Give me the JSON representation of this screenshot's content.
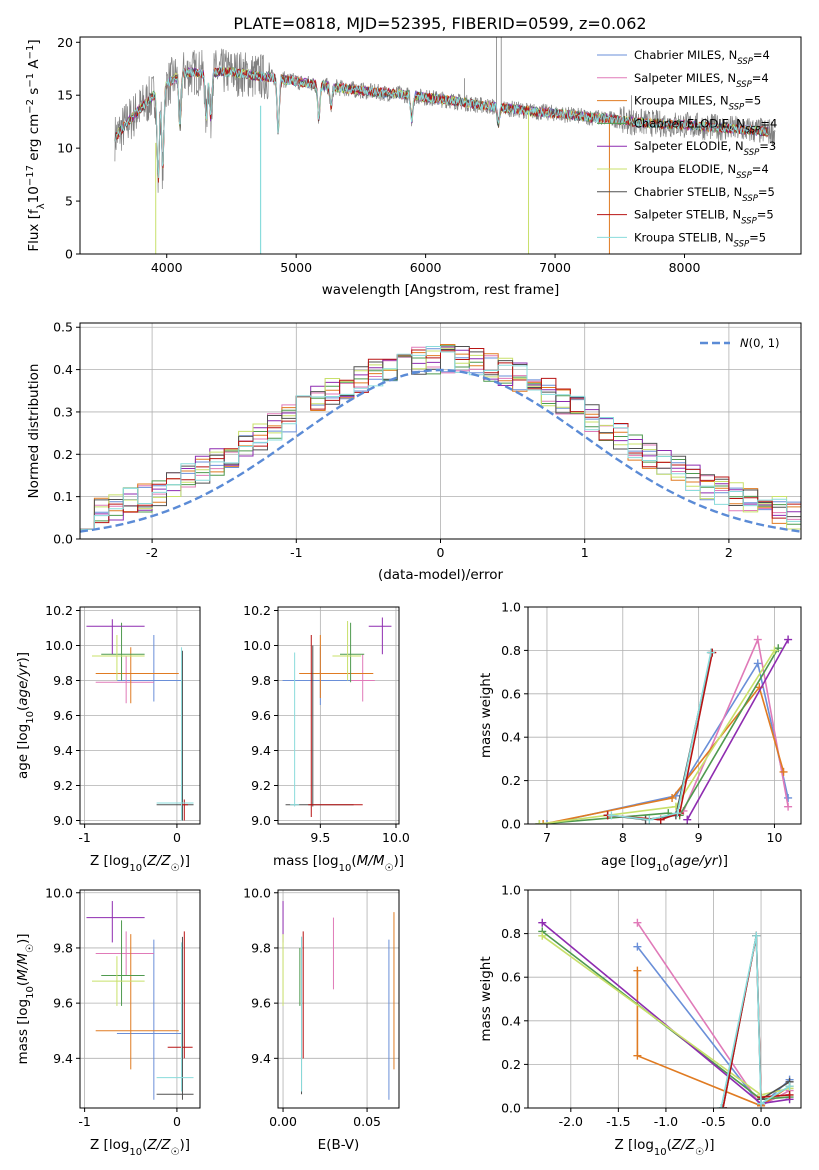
{
  "figure_title": "PLATE=0818, MJD=52395, FIBERID=0599, z=0.062",
  "series": [
    {
      "key": "cm",
      "name": "Chabrier MILES",
      "nssp": "4",
      "color": "#6a8fd8"
    },
    {
      "key": "sm",
      "name": "Salpeter MILES",
      "nssp": "4",
      "color": "#e07ab8"
    },
    {
      "key": "km",
      "name": "Kroupa MILES",
      "nssp": "5",
      "color": "#e07b22"
    },
    {
      "key": "ce",
      "name": "Chabrier ELODIE",
      "nssp": "4",
      "color": "#4f9a4f"
    },
    {
      "key": "se",
      "name": "Salpeter ELODIE",
      "nssp": "3",
      "color": "#8e2cb0"
    },
    {
      "key": "ke",
      "name": "Kroupa ELODIE",
      "nssp": "4",
      "color": "#c8e06a"
    },
    {
      "key": "cs",
      "name": "Chabrier STELIB",
      "nssp": "5",
      "color": "#505050"
    },
    {
      "key": "ss",
      "name": "Salpeter STELIB",
      "nssp": "5",
      "color": "#b81414"
    },
    {
      "key": "ks",
      "name": "Kroupa STELIB",
      "nssp": "5",
      "color": "#8adcdc"
    }
  ],
  "nssp_prefix": "N",
  "nssp_sub": "SSP",
  "chart_data": [
    {
      "id": "spectrum",
      "type": "line",
      "xlabel": "wavelength [Angstrom, rest frame]",
      "ylabel": "Flux [fλ10⁻¹⁷ erg cm⁻² s⁻¹ A⁻¹]",
      "xlim": [
        3330,
        8900
      ],
      "ylim": [
        0,
        20.5
      ],
      "xticks": [
        4000,
        5000,
        6000,
        7000,
        8000
      ],
      "yticks": [
        0,
        5,
        10,
        15,
        20
      ],
      "grid": false,
      "legend": "upper right",
      "data_color": "#808080",
      "continuum": {
        "x": [
          3600,
          3700,
          3800,
          3900,
          4000,
          4100,
          4200,
          4300,
          4400,
          4500,
          4600,
          4700,
          4800,
          4900,
          5000,
          5200,
          5400,
          5600,
          5800,
          6000,
          6200,
          6400,
          6600,
          6800,
          7000,
          7200,
          7400,
          7600,
          7800,
          8000,
          8200,
          8400,
          8600,
          8700
        ],
        "y": [
          11.0,
          12.5,
          13.8,
          15.0,
          16.0,
          17.0,
          17.2,
          17.0,
          17.2,
          17.2,
          17.0,
          16.8,
          16.7,
          16.5,
          16.3,
          15.9,
          15.6,
          15.3,
          15.1,
          14.8,
          14.5,
          14.1,
          13.8,
          13.5,
          13.3,
          13.0,
          12.8,
          12.5,
          12.3,
          12.2,
          12.0,
          11.8,
          11.6,
          11.5
        ]
      }
    },
    {
      "id": "residuals",
      "type": "line",
      "xlabel": "(data-model)/error",
      "ylabel": "Normed distribution",
      "xlim": [
        -2.5,
        2.5
      ],
      "ylim": [
        0,
        0.51
      ],
      "xticks": [
        -2,
        -1,
        0,
        1,
        2
      ],
      "yticks": [
        0.0,
        0.1,
        0.2,
        0.3,
        0.4,
        0.5
      ],
      "grid": true,
      "legend": "upper right",
      "gaussian_label": "N(0,1)",
      "gaussian_color": "#5b8bd6",
      "bin_width": 0.1
    },
    {
      "id": "age-vs-z",
      "type": "scatter",
      "xlabel": "Z [log10(Z/Z☉)]",
      "ylabel": "age [log10(age/yr)]",
      "xlim": [
        -1.05,
        0.25
      ],
      "ylim": [
        8.98,
        10.22
      ],
      "xticks": [
        -1,
        0
      ],
      "yticks": [
        9.0,
        9.2,
        9.4,
        9.6,
        9.8,
        10.0,
        10.2
      ],
      "grid": true,
      "points": [
        {
          "s": "cm",
          "x": -0.25,
          "y": 9.8,
          "xe": [
            -0.65,
            0.05
          ],
          "ye": [
            9.68,
            10.06
          ]
        },
        {
          "s": "sm",
          "x": -0.55,
          "y": 9.79,
          "xe": [
            -0.88,
            -0.25
          ],
          "ye": [
            9.67,
            9.94
          ]
        },
        {
          "s": "km",
          "x": -0.5,
          "y": 9.84,
          "xe": [
            -0.88,
            0.02
          ],
          "ye": [
            9.67,
            9.99
          ]
        },
        {
          "s": "ce",
          "x": -0.6,
          "y": 9.95,
          "xe": [
            -0.82,
            -0.35
          ],
          "ye": [
            9.8,
            10.13
          ]
        },
        {
          "s": "se",
          "x": -0.7,
          "y": 10.11,
          "xe": [
            -0.98,
            -0.35
          ],
          "ye": [
            9.95,
            10.15
          ]
        },
        {
          "s": "ke",
          "x": -0.65,
          "y": 9.94,
          "xe": [
            -0.92,
            -0.35
          ],
          "ye": [
            9.8,
            10.06
          ]
        },
        {
          "s": "cs",
          "x": 0.06,
          "y": 9.09,
          "xe": [
            -0.22,
            0.18
          ],
          "ye": [
            9.0,
            9.97
          ]
        },
        {
          "s": "ss",
          "x": 0.08,
          "y": 9.09,
          "xe": [
            0.04,
            0.12
          ],
          "ye": [
            9.0,
            9.12
          ]
        },
        {
          "s": "ks",
          "x": 0.05,
          "y": 9.1,
          "xe": [
            -0.22,
            0.18
          ],
          "ye": [
            9.0,
            9.99
          ]
        }
      ]
    },
    {
      "id": "age-vs-mass",
      "type": "scatter",
      "xlabel": "mass [log10(M/M☉)]",
      "ylabel": "",
      "xlim": [
        9.22,
        10.02
      ],
      "ylim": [
        8.98,
        10.22
      ],
      "xticks": [
        9.5,
        10.0
      ],
      "yticks": [
        9.0,
        9.2,
        9.4,
        9.6,
        9.8,
        10.0,
        10.2
      ],
      "grid": true,
      "points": [
        {
          "s": "cm",
          "x": 9.5,
          "y": 9.8,
          "xe": [
            9.25,
            9.8
          ],
          "ye": [
            9.66,
            9.99
          ]
        },
        {
          "s": "sm",
          "x": 9.78,
          "y": 9.8,
          "xe": [
            9.7,
            9.86
          ],
          "ye": [
            9.68,
            9.95
          ]
        },
        {
          "s": "km",
          "x": 9.5,
          "y": 9.84,
          "xe": [
            9.36,
            9.85
          ],
          "ye": [
            9.7,
            10.06
          ]
        },
        {
          "s": "ce",
          "x": 9.7,
          "y": 9.95,
          "xe": [
            9.63,
            9.79
          ],
          "ye": [
            9.79,
            10.13
          ]
        },
        {
          "s": "se",
          "x": 9.91,
          "y": 10.11,
          "xe": [
            9.82,
            9.97
          ],
          "ye": [
            9.95,
            10.16
          ]
        },
        {
          "s": "ke",
          "x": 9.68,
          "y": 9.94,
          "xe": [
            9.58,
            9.77
          ],
          "ye": [
            9.8,
            10.14
          ]
        },
        {
          "s": "cs",
          "x": 9.45,
          "y": 9.09,
          "xe": [
            9.27,
            9.72
          ],
          "ye": [
            9.08,
            10.0
          ]
        },
        {
          "s": "ss",
          "x": 9.44,
          "y": 9.09,
          "xe": [
            9.42,
            9.78
          ],
          "ye": [
            9.02,
            10.06
          ]
        },
        {
          "s": "ks",
          "x": 9.33,
          "y": 9.09,
          "xe": [
            9.3,
            9.36
          ],
          "ye": [
            9.08,
            9.96
          ]
        }
      ]
    },
    {
      "id": "weight-vs-age",
      "type": "line",
      "xlabel": "age [log10(age/yr)]",
      "ylabel": "mass weight",
      "xlim": [
        6.75,
        10.35
      ],
      "ylim": [
        0,
        1.0
      ],
      "xticks": [
        7,
        8,
        9,
        10
      ],
      "yticks": [
        0.0,
        0.2,
        0.4,
        0.6,
        0.8,
        1.0
      ],
      "grid": true,
      "lines": {
        "cm": [
          [
            7.0,
            0.0
          ],
          [
            8.7,
            0.13
          ],
          [
            9.78,
            0.74
          ],
          [
            10.18,
            0.12
          ]
        ],
        "sm": [
          [
            8.8,
            0.06
          ],
          [
            9.78,
            0.85
          ],
          [
            10.18,
            0.08
          ]
        ],
        "km": [
          [
            6.95,
            0.0
          ],
          [
            8.65,
            0.12
          ],
          [
            9.8,
            0.63
          ],
          [
            10.12,
            0.24
          ]
        ],
        "ce": [
          [
            6.9,
            0.0
          ],
          [
            8.6,
            0.05
          ],
          [
            8.75,
            0.04
          ],
          [
            10.05,
            0.81
          ]
        ],
        "se": [
          [
            8.85,
            0.02
          ],
          [
            10.18,
            0.85
          ]
        ],
        "ke": [
          [
            6.9,
            0.0
          ],
          [
            8.7,
            0.08
          ],
          [
            10.0,
            0.8
          ]
        ],
        "cs": [
          [
            7.8,
            0.04
          ],
          [
            8.3,
            0.02
          ],
          [
            8.7,
            0.04
          ],
          [
            9.17,
            0.79
          ]
        ],
        "ss": [
          [
            7.8,
            0.04
          ],
          [
            8.5,
            0.02
          ],
          [
            8.75,
            0.05
          ],
          [
            9.18,
            0.79
          ]
        ],
        "ks": [
          [
            7.85,
            0.04
          ],
          [
            8.35,
            0.02
          ],
          [
            8.72,
            0.05
          ],
          [
            9.16,
            0.79
          ]
        ]
      }
    },
    {
      "id": "mass-vs-z",
      "type": "scatter",
      "xlabel": "Z [log10(Z/Z☉)]",
      "ylabel": "mass [log10(M/M☉)]",
      "xlim": [
        -1.05,
        0.25
      ],
      "ylim": [
        9.22,
        10.01
      ],
      "xticks": [
        -1,
        0
      ],
      "yticks": [
        9.4,
        9.6,
        9.8,
        10.0
      ],
      "grid": true,
      "points": [
        {
          "s": "cm",
          "x": -0.25,
          "y": 9.49,
          "xe": [
            -0.65,
            0.05
          ],
          "ye": [
            9.25,
            9.83
          ]
        },
        {
          "s": "sm",
          "x": -0.55,
          "y": 9.78,
          "xe": [
            -0.88,
            -0.25
          ],
          "ye": [
            9.7,
            9.86
          ]
        },
        {
          "s": "km",
          "x": -0.5,
          "y": 9.5,
          "xe": [
            -0.88,
            0.02
          ],
          "ye": [
            9.36,
            9.85
          ]
        },
        {
          "s": "ce",
          "x": -0.6,
          "y": 9.7,
          "xe": [
            -0.82,
            -0.35
          ],
          "ye": [
            9.59,
            9.9
          ]
        },
        {
          "s": "se",
          "x": -0.7,
          "y": 9.91,
          "xe": [
            -0.98,
            -0.35
          ],
          "ye": [
            9.82,
            9.97
          ]
        },
        {
          "s": "ke",
          "x": -0.65,
          "y": 9.68,
          "xe": [
            -0.92,
            -0.35
          ],
          "ye": [
            9.59,
            9.77
          ]
        },
        {
          "s": "cs",
          "x": 0.06,
          "y": 9.27,
          "xe": [
            -0.22,
            0.18
          ],
          "ye": [
            9.25,
            9.84
          ]
        },
        {
          "s": "ss",
          "x": 0.08,
          "y": 9.44,
          "xe": [
            -0.1,
            0.17
          ],
          "ye": [
            9.4,
            9.86
          ]
        },
        {
          "s": "ks",
          "x": 0.05,
          "y": 9.33,
          "xe": [
            -0.22,
            0.18
          ],
          "ye": [
            9.28,
            9.82
          ]
        }
      ]
    },
    {
      "id": "mass-vs-ebv",
      "type": "scatter",
      "xlabel": "E(B-V)",
      "ylabel": "",
      "xlim": [
        -0.003,
        0.069
      ],
      "ylim": [
        9.22,
        10.01
      ],
      "xticks": [
        0.0,
        0.05
      ],
      "yticks": [
        9.4,
        9.6,
        9.8,
        10.0
      ],
      "grid": true,
      "points": [
        {
          "s": "cm",
          "x": 0.063,
          "y": 9.5,
          "ye": [
            9.25,
            9.83
          ]
        },
        {
          "s": "sm",
          "x": 0.03,
          "y": 9.78,
          "ye": [
            9.65,
            9.91
          ]
        },
        {
          "s": "km",
          "x": 0.066,
          "y": 9.5,
          "ye": [
            9.36,
            9.93
          ]
        },
        {
          "s": "ce",
          "x": 0.01,
          "y": 9.68,
          "ye": [
            9.59,
            9.8
          ]
        },
        {
          "s": "se",
          "x": 0.0,
          "y": 9.91,
          "ye": [
            9.82,
            9.97
          ]
        },
        {
          "s": "ke",
          "x": 0.0,
          "y": 9.68,
          "ye": [
            9.59,
            9.85
          ]
        },
        {
          "s": "cs",
          "x": 0.011,
          "y": 9.27,
          "ye": [
            9.27,
            9.84
          ]
        },
        {
          "s": "ss",
          "x": 0.012,
          "y": 9.44,
          "ye": [
            9.4,
            9.86
          ]
        },
        {
          "s": "ks",
          "x": 0.011,
          "y": 9.33,
          "ye": [
            9.28,
            9.84
          ]
        }
      ]
    },
    {
      "id": "weight-vs-z",
      "type": "line",
      "xlabel": "Z [log10(Z/Z☉)]",
      "ylabel": "mass weight",
      "xlim": [
        -2.45,
        0.42
      ],
      "ylim": [
        0,
        1.0
      ],
      "xticks": [
        -2.0,
        -1.5,
        -1.0,
        -0.5,
        0.0
      ],
      "yticks": [
        0.0,
        0.2,
        0.4,
        0.6,
        0.8,
        1.0
      ],
      "grid": true,
      "lines": {
        "cm": [
          [
            -1.3,
            0.74
          ],
          [
            0.0,
            0.01
          ],
          [
            0.3,
            0.13
          ]
        ],
        "sm": [
          [
            -1.3,
            0.85
          ],
          [
            0.0,
            0.01
          ],
          [
            0.3,
            0.08
          ]
        ],
        "km": [
          [
            -1.3,
            0.63
          ],
          [
            -1.3,
            0.24
          ],
          [
            0.0,
            0.01
          ],
          [
            0.3,
            0.1
          ]
        ],
        "ce": [
          [
            -2.3,
            0.81
          ],
          [
            0.0,
            0.04
          ],
          [
            0.3,
            0.05
          ]
        ],
        "se": [
          [
            -2.3,
            0.85
          ],
          [
            0.0,
            0.02
          ],
          [
            0.3,
            0.04
          ]
        ],
        "ke": [
          [
            -2.3,
            0.79
          ],
          [
            0.0,
            0.06
          ],
          [
            0.3,
            0.09
          ]
        ],
        "cs": [
          [
            -0.4,
            0.0
          ],
          [
            -0.05,
            0.79
          ],
          [
            0.0,
            0.04
          ],
          [
            0.3,
            0.12
          ]
        ],
        "ss": [
          [
            -0.4,
            0.0
          ],
          [
            -0.05,
            0.79
          ],
          [
            0.0,
            0.05
          ],
          [
            0.3,
            0.06
          ]
        ],
        "ks": [
          [
            -0.42,
            0.0
          ],
          [
            -0.05,
            0.79
          ],
          [
            0.0,
            0.02
          ],
          [
            0.3,
            0.1
          ]
        ]
      }
    }
  ]
}
